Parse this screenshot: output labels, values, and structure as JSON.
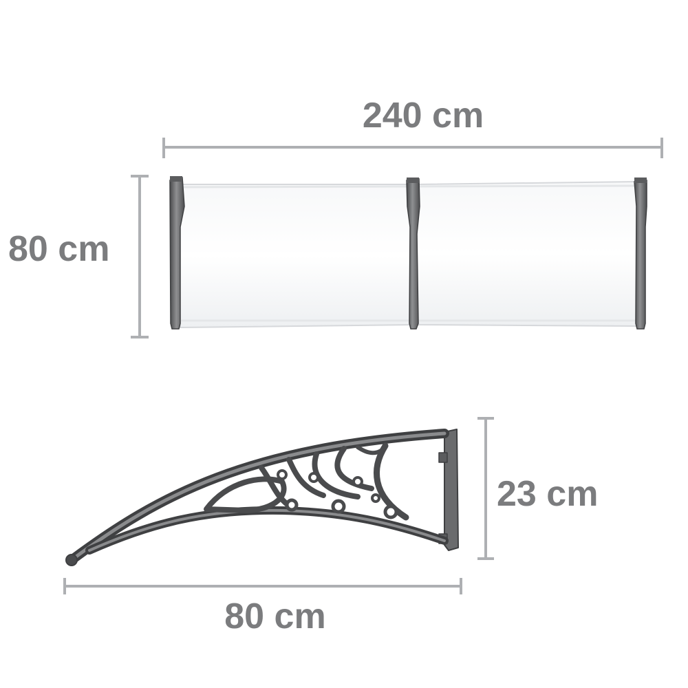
{
  "dimensions": {
    "width_top": "240 cm",
    "depth_left": "80 cm",
    "height_bracket": "23 cm",
    "depth_bracket": "80 cm"
  },
  "colors": {
    "dimension_line": "#aeb0b3",
    "dimension_text": "#7b7c7e",
    "frame": "#5b5c5e",
    "frame_highlight": "#8a8b8d",
    "panel": "#ffffff",
    "panel_edge": "#d6d8db"
  },
  "icons": {
    "canopy": "canopy-top-view",
    "bracket": "canopy-bracket-side-view"
  }
}
